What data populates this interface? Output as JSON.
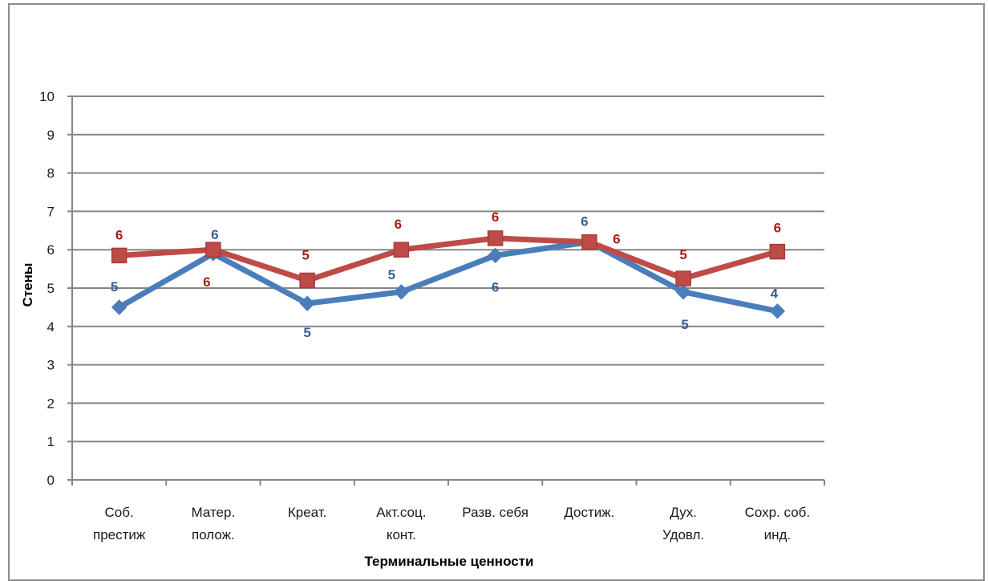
{
  "chart_data": {
    "type": "line",
    "title": "",
    "xlabel": "Терминальные ценности",
    "ylabel": "Стены",
    "ylim": [
      0,
      10
    ],
    "yticks": [
      0,
      1,
      2,
      3,
      4,
      5,
      6,
      7,
      8,
      9,
      10
    ],
    "grid": true,
    "legend": "none",
    "categories": [
      [
        "Соб.",
        "престиж"
      ],
      [
        "Матер.",
        "полож."
      ],
      [
        "Креат."
      ],
      [
        "Акт.соц.",
        "конт."
      ],
      [
        "Разв. себя"
      ],
      [
        "Достиж."
      ],
      [
        "Дух.",
        "Удовл."
      ],
      [
        "Сохр. соб.",
        "инд."
      ]
    ],
    "series": [
      {
        "color": "#4a7ebb",
        "marker": "diamond",
        "values": [
          4.5,
          5.9,
          4.6,
          4.9,
          5.85,
          6.2,
          4.9,
          4.4
        ],
        "labels": [
          "5",
          "6",
          "5",
          "5",
          "6",
          "6",
          "5",
          "4"
        ]
      },
      {
        "color": "#be4b48",
        "marker": "square",
        "values": [
          5.85,
          6.0,
          5.2,
          6.0,
          6.3,
          6.2,
          5.25,
          5.95
        ],
        "labels": [
          "6",
          "6",
          "5",
          "6",
          "6",
          "6",
          "5",
          "6"
        ]
      }
    ]
  }
}
